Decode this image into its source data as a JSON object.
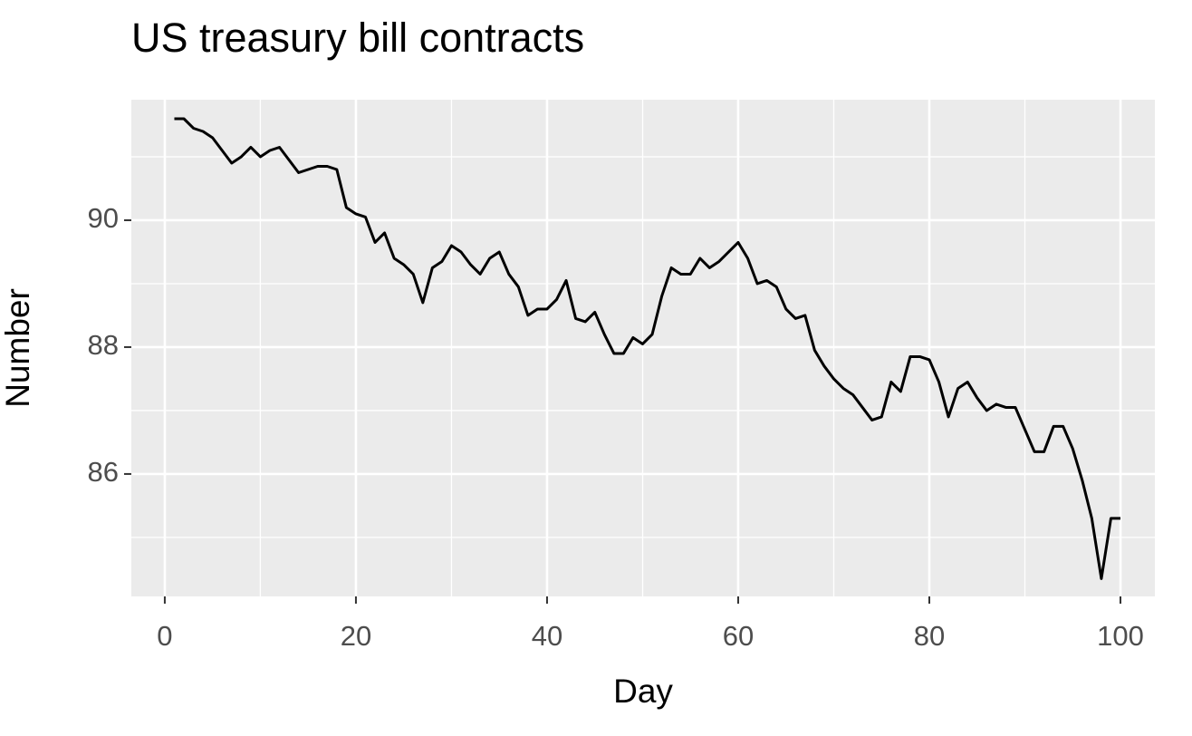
{
  "chart_data": {
    "type": "line",
    "title": "US treasury bill contracts",
    "x_label": "Day",
    "y_label": "Number",
    "x": [
      1,
      2,
      3,
      4,
      5,
      6,
      7,
      8,
      9,
      10,
      11,
      12,
      13,
      14,
      15,
      16,
      17,
      18,
      19,
      20,
      21,
      22,
      23,
      24,
      25,
      26,
      27,
      28,
      29,
      30,
      31,
      32,
      33,
      34,
      35,
      36,
      37,
      38,
      39,
      40,
      41,
      42,
      43,
      44,
      45,
      46,
      47,
      48,
      49,
      50,
      51,
      52,
      53,
      54,
      55,
      56,
      57,
      58,
      59,
      60,
      61,
      62,
      63,
      64,
      65,
      66,
      67,
      68,
      69,
      70,
      71,
      72,
      73,
      74,
      75,
      76,
      77,
      78,
      79,
      80,
      81,
      82,
      83,
      84,
      85,
      86,
      87,
      88,
      89,
      90,
      91,
      92,
      93,
      94,
      95,
      96,
      97,
      98,
      99,
      100
    ],
    "series": [
      {
        "name": "Number",
        "color": "#000000",
        "values": [
          91.6,
          91.6,
          91.45,
          91.4,
          91.3,
          91.1,
          90.9,
          91.0,
          91.15,
          91.0,
          91.1,
          91.15,
          90.95,
          90.75,
          90.8,
          90.85,
          90.85,
          90.8,
          90.2,
          90.1,
          90.05,
          89.65,
          89.8,
          89.4,
          89.3,
          89.15,
          88.7,
          89.25,
          89.35,
          89.6,
          89.5,
          89.3,
          89.15,
          89.4,
          89.5,
          89.15,
          88.95,
          88.5,
          88.6,
          88.6,
          88.75,
          89.05,
          88.45,
          88.4,
          88.55,
          88.2,
          87.9,
          87.9,
          88.15,
          88.05,
          88.2,
          88.8,
          89.25,
          89.15,
          89.15,
          89.4,
          89.25,
          89.35,
          89.5,
          89.65,
          89.4,
          89.0,
          89.05,
          88.95,
          88.6,
          88.45,
          88.5,
          87.95,
          87.7,
          87.5,
          87.35,
          87.25,
          87.05,
          86.85,
          86.9,
          87.45,
          87.3,
          87.85,
          87.85,
          87.8,
          87.45,
          86.9,
          87.35,
          87.45,
          87.2,
          87.0,
          87.1,
          87.05,
          87.05,
          86.7,
          86.35,
          86.35,
          86.75,
          86.75,
          86.4,
          85.9,
          85.3,
          84.35,
          85.3,
          85.3
        ]
      }
    ],
    "xlim": [
      -3.5,
      103.6
    ],
    "ylim": [
      84.07,
      91.9
    ],
    "xticks": [
      0,
      20,
      40,
      60,
      80,
      100
    ],
    "yticks": [
      86,
      88,
      90
    ],
    "x_minor_ticks": [
      10,
      30,
      50,
      70,
      90
    ],
    "y_minor_ticks": [
      85,
      87,
      89,
      91
    ],
    "grid": true,
    "panel_color": "#ebebeb"
  }
}
